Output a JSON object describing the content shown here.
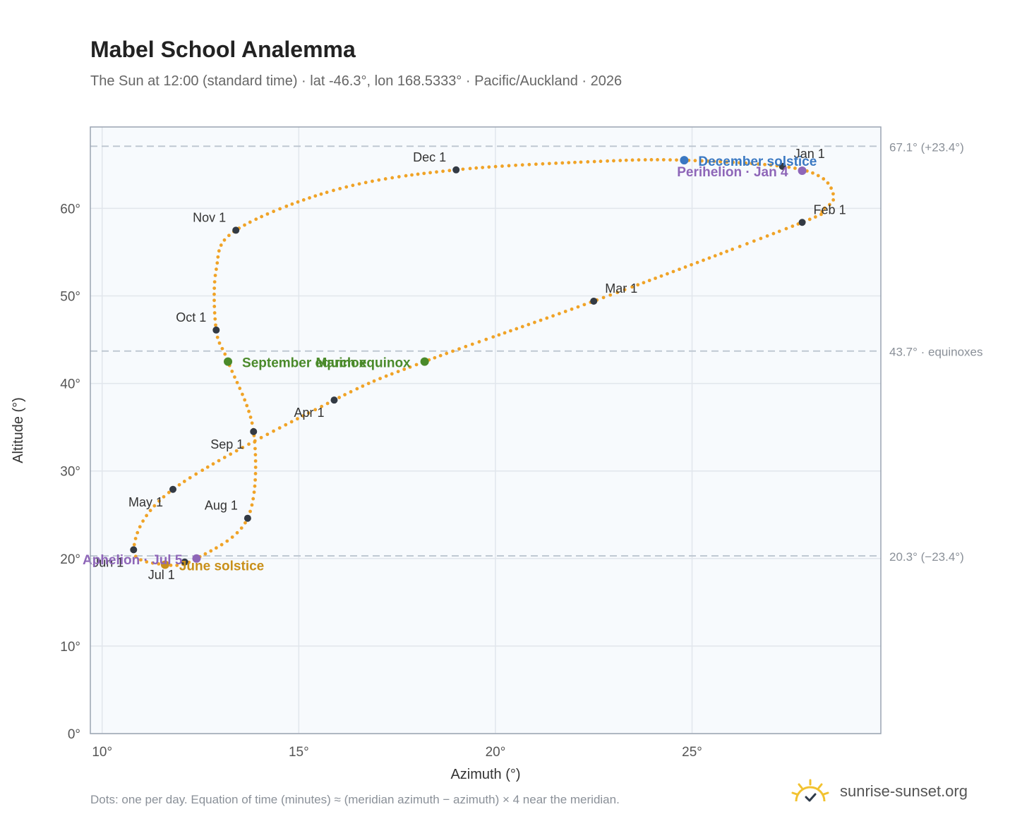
{
  "header": {
    "title": "Mabel School Analemma",
    "subtitle": "The Sun at 12:00 (standard time) · lat -46.3°, lon 168.5333° · Pacific/Auckland · 2026"
  },
  "footer": {
    "note": "Dots: one per day. Equation of time (minutes) ≈ (meridian azimuth − azimuth) × 4 near the meridian.",
    "brand": "sunrise-sunset.org"
  },
  "colors": {
    "curve": "#f0a327",
    "month_marker": "#333a44",
    "december_solstice": "#3a78c2",
    "june_solstice": "#c9901a",
    "equinox": "#4a8a2a",
    "perihelion": "#8e66b8",
    "aphelion": "#8e66b8",
    "plot_bg": "#f7fafd",
    "reference_line": "#bcc5d0"
  },
  "chart_data": {
    "type": "scatter",
    "xlabel": "Azimuth (°)",
    "ylabel": "Altitude (°)",
    "xlim": [
      9.7,
      29.8
    ],
    "ylim": [
      0,
      69.3
    ],
    "x_ticks": [
      10,
      15,
      20,
      25
    ],
    "x_tick_labels": [
      "10°",
      "15°",
      "20°",
      "25°"
    ],
    "y_ticks": [
      0,
      10,
      20,
      30,
      40,
      50,
      60
    ],
    "y_tick_labels": [
      "0°",
      "10°",
      "20°",
      "30°",
      "40°",
      "50°",
      "60°"
    ],
    "grid": true,
    "reference_lines": [
      {
        "y": 67.1,
        "label": "67.1° (+23.4°)"
      },
      {
        "y": 43.7,
        "label": "43.7° · equinoxes"
      },
      {
        "y": 20.3,
        "label": "20.3° (−23.4°)"
      }
    ],
    "curve_anchors": [
      {
        "x": 27.3,
        "y": 64.8
      },
      {
        "x": 28.3,
        "y": 63.5
      },
      {
        "x": 28.6,
        "y": 61.2
      },
      {
        "x": 28.3,
        "y": 59.8
      },
      {
        "x": 27.8,
        "y": 58.4
      },
      {
        "x": 22.5,
        "y": 49.4
      },
      {
        "x": 18.2,
        "y": 42.5
      },
      {
        "x": 15.9,
        "y": 38.1
      },
      {
        "x": 11.8,
        "y": 27.9
      },
      {
        "x": 10.8,
        "y": 21.0
      },
      {
        "x": 11.6,
        "y": 19.3
      },
      {
        "x": 12.4,
        "y": 20.0
      },
      {
        "x": 13.7,
        "y": 24.6
      },
      {
        "x": 13.85,
        "y": 34.5
      },
      {
        "x": 13.2,
        "y": 42.5
      },
      {
        "x": 12.9,
        "y": 46.1
      },
      {
        "x": 12.9,
        "y": 53.0
      },
      {
        "x": 13.4,
        "y": 57.5
      },
      {
        "x": 16.0,
        "y": 62.2
      },
      {
        "x": 19.0,
        "y": 64.4
      },
      {
        "x": 22.8,
        "y": 65.4
      },
      {
        "x": 24.8,
        "y": 65.5
      },
      {
        "x": 27.3,
        "y": 64.8
      }
    ],
    "month_markers": [
      {
        "label": "Jan 1",
        "x": 27.3,
        "y": 64.8,
        "pos": "above-right"
      },
      {
        "label": "Feb 1",
        "x": 27.8,
        "y": 58.4,
        "pos": "above-right"
      },
      {
        "label": "Mar 1",
        "x": 22.5,
        "y": 49.4,
        "pos": "above-right"
      },
      {
        "label": "Apr 1",
        "x": 15.9,
        "y": 38.1,
        "pos": "below-left"
      },
      {
        "label": "May 1",
        "x": 11.8,
        "y": 27.9,
        "pos": "below-left"
      },
      {
        "label": "Jun 1",
        "x": 10.8,
        "y": 21.0,
        "pos": "below-left"
      },
      {
        "label": "Jul 1",
        "x": 12.1,
        "y": 19.6,
        "pos": "below-left"
      },
      {
        "label": "Aug 1",
        "x": 13.7,
        "y": 24.6,
        "pos": "above-left"
      },
      {
        "label": "Sep 1",
        "x": 13.85,
        "y": 34.5,
        "pos": "below-left"
      },
      {
        "label": "Oct 1",
        "x": 12.9,
        "y": 46.1,
        "pos": "above-left"
      },
      {
        "label": "Nov 1",
        "x": 13.4,
        "y": 57.5,
        "pos": "above-left"
      },
      {
        "label": "Dec 1",
        "x": 19.0,
        "y": 64.4,
        "pos": "above-left"
      }
    ],
    "events": [
      {
        "label": "December solstice",
        "x": 24.8,
        "y": 65.5,
        "color": "#3a78c2",
        "anchor": "start"
      },
      {
        "label": "Perihelion · Jan 4",
        "x": 27.8,
        "y": 64.3,
        "color": "#8e66b8",
        "anchor": "end"
      },
      {
        "label": "March equinox",
        "x": 18.2,
        "y": 42.5,
        "color": "#4a8a2a",
        "anchor": "end"
      },
      {
        "label": "September equinox",
        "x": 13.2,
        "y": 42.5,
        "color": "#4a8a2a",
        "anchor": "start"
      },
      {
        "label": "June solstice",
        "x": 11.6,
        "y": 19.3,
        "color": "#c9901a",
        "anchor": "start"
      },
      {
        "label": "Aphelion · Jul 5",
        "x": 12.4,
        "y": 20.0,
        "color": "#8e66b8",
        "anchor": "end"
      }
    ]
  }
}
